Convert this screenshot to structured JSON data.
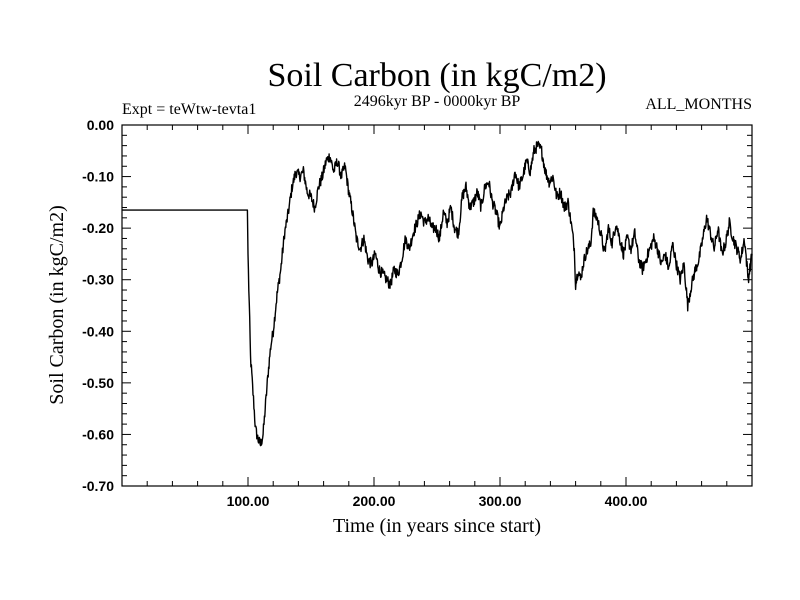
{
  "chart_data": {
    "type": "line",
    "title": "Soil Carbon (in kgC/m2)",
    "subtitle": "2496kyr BP - 0000kyr BP",
    "header_left": "Expt = teWtw-tevta1",
    "header_right": "ALL_MONTHS",
    "xlabel": "Time (in years since start)",
    "ylabel": "Soil Carbon (in kgC/m2)",
    "xlim": [
      0,
      500
    ],
    "ylim": [
      -0.7,
      0.0
    ],
    "x_ticks": [
      100,
      200,
      300,
      400
    ],
    "x_tick_labels": [
      "100.00",
      "200.00",
      "300.00",
      "400.00"
    ],
    "y_ticks": [
      0.0,
      -0.1,
      -0.2,
      -0.3,
      -0.4,
      -0.5,
      -0.6,
      -0.7
    ],
    "y_tick_labels": [
      "0.00",
      "-0.10",
      "-0.20",
      "-0.30",
      "-0.40",
      "-0.50",
      "-0.60",
      "-0.70"
    ],
    "series": [
      {
        "name": "Soil Carbon",
        "color": "#000000",
        "x": [
          0,
          99.5,
          100,
          102,
          104,
          106,
          108,
          110,
          112,
          114,
          116,
          118,
          120,
          123,
          126,
          129,
          132,
          135,
          138,
          141,
          144,
          147,
          150,
          153,
          156,
          159,
          162,
          165,
          168,
          171,
          174,
          177,
          180,
          183,
          186,
          189,
          192,
          195,
          198,
          201,
          204,
          207,
          210,
          213,
          216,
          219,
          222,
          225,
          228,
          231,
          234,
          237,
          240,
          243,
          246,
          249,
          252,
          255,
          258,
          261,
          264,
          267,
          270,
          273,
          276,
          279,
          282,
          285,
          288,
          291,
          294,
          297,
          300,
          303,
          306,
          309,
          312,
          315,
          318,
          321,
          324,
          327,
          330,
          333,
          336,
          339,
          342,
          345,
          348,
          351,
          354,
          357,
          359,
          360,
          362,
          364,
          366,
          368,
          370,
          372,
          374,
          377,
          380,
          383,
          386,
          389,
          392,
          395,
          398,
          401,
          404,
          407,
          410,
          413,
          416,
          419,
          422,
          425,
          428,
          431,
          434,
          437,
          440,
          443,
          446,
          449,
          452,
          455,
          458,
          461,
          464,
          467,
          470,
          473,
          476,
          479,
          482,
          485,
          488,
          491,
          494,
          497,
          500
        ],
        "y": [
          -0.165,
          -0.165,
          -0.25,
          -0.45,
          -0.52,
          -0.59,
          -0.61,
          -0.62,
          -0.6,
          -0.54,
          -0.48,
          -0.43,
          -0.4,
          -0.33,
          -0.28,
          -0.21,
          -0.17,
          -0.12,
          -0.09,
          -0.1,
          -0.09,
          -0.13,
          -0.14,
          -0.16,
          -0.12,
          -0.1,
          -0.07,
          -0.06,
          -0.09,
          -0.07,
          -0.1,
          -0.08,
          -0.13,
          -0.17,
          -0.22,
          -0.24,
          -0.22,
          -0.26,
          -0.27,
          -0.25,
          -0.28,
          -0.29,
          -0.3,
          -0.31,
          -0.28,
          -0.29,
          -0.26,
          -0.22,
          -0.24,
          -0.21,
          -0.19,
          -0.17,
          -0.19,
          -0.18,
          -0.2,
          -0.2,
          -0.22,
          -0.17,
          -0.19,
          -0.16,
          -0.2,
          -0.21,
          -0.14,
          -0.12,
          -0.16,
          -0.15,
          -0.13,
          -0.16,
          -0.12,
          -0.11,
          -0.15,
          -0.17,
          -0.2,
          -0.16,
          -0.14,
          -0.13,
          -0.09,
          -0.12,
          -0.1,
          -0.07,
          -0.09,
          -0.05,
          -0.04,
          -0.05,
          -0.09,
          -0.11,
          -0.1,
          -0.14,
          -0.13,
          -0.16,
          -0.15,
          -0.2,
          -0.24,
          -0.31,
          -0.28,
          -0.3,
          -0.27,
          -0.25,
          -0.24,
          -0.23,
          -0.17,
          -0.18,
          -0.21,
          -0.25,
          -0.2,
          -0.23,
          -0.19,
          -0.22,
          -0.25,
          -0.22,
          -0.24,
          -0.21,
          -0.26,
          -0.28,
          -0.26,
          -0.24,
          -0.22,
          -0.24,
          -0.27,
          -0.25,
          -0.28,
          -0.23,
          -0.27,
          -0.3,
          -0.27,
          -0.35,
          -0.31,
          -0.28,
          -0.26,
          -0.22,
          -0.18,
          -0.21,
          -0.24,
          -0.2,
          -0.25,
          -0.23,
          -0.19,
          -0.22,
          -0.24,
          -0.26,
          -0.22,
          -0.3,
          -0.25
        ]
      }
    ]
  }
}
